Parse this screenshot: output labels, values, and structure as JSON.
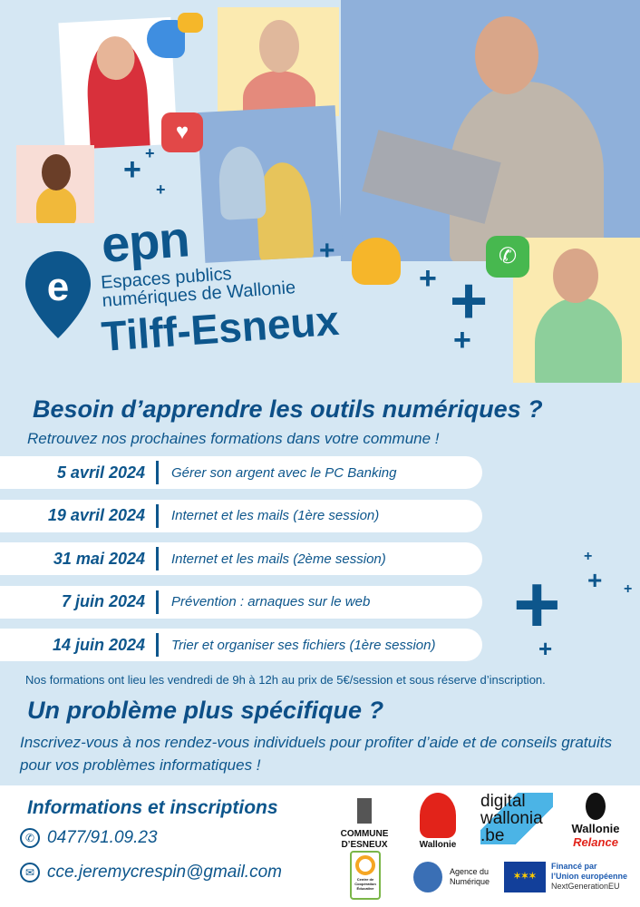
{
  "colors": {
    "primary": "#0d568c",
    "background": "#d5e7f3",
    "photo_yellow": "#fbeab0",
    "photo_blue": "#8fb0da",
    "photo_pink": "#f8ddd6"
  },
  "logo": {
    "brand": "epn",
    "tagline_line1": "Espaces publics",
    "tagline_line2": "numériques de Wallonie",
    "city": "Tilff-Esneux",
    "icon": "location-pin-e-icon"
  },
  "heading": "Besoin d’apprendre les outils numériques ?",
  "lead": "Retrouvez nos prochaines formations dans votre commune !",
  "sessions": [
    {
      "date": "5 avril 2024",
      "topic": "Gérer son argent avec le PC Banking"
    },
    {
      "date": "19 avril 2024",
      "topic": "Internet et les mails (1ère session)"
    },
    {
      "date": "31 mai 2024",
      "topic": "Internet et les mails (2ème session)"
    },
    {
      "date": "7 juin 2024",
      "topic": "Prévention : arnaques sur le web"
    },
    {
      "date": "14 juin 2024",
      "topic": "Trier et organiser ses fichiers (1ère session)"
    }
  ],
  "note": "Nos formations ont lieu les vendredi de 9h à 12h au prix de 5€/session et sous réserve d’inscription.",
  "heading2": "Un problème plus spécifique ?",
  "para": "Inscrivez-vous à nos rendez-vous individuels pour profiter d’aide et de conseils gratuits pour vos problèmes informatiques !",
  "footer": {
    "title": "Informations et inscriptions",
    "phone": "0477/91.09.23",
    "email": "cce.jeremycrespin@gmail.com",
    "logos": {
      "commune": "COMMUNE D’ESNEUX",
      "wallonie": "Wallonie",
      "digital": "digital wallonia .be",
      "relance1": "Wallonie",
      "relance2": "Relance",
      "cce": "Centre de Coopération Éducative",
      "agence": "Agence du Numérique",
      "eu1": "Financé par",
      "eu2": "l’Union européenne",
      "eu3": "NextGenerationEU"
    }
  }
}
